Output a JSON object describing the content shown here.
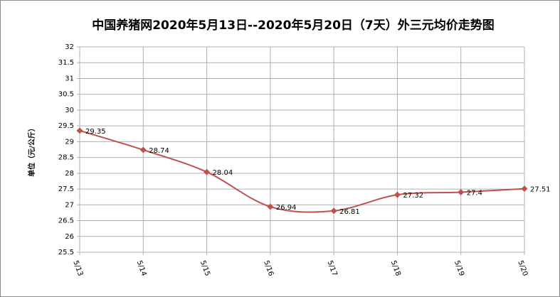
{
  "chart_data": {
    "type": "line",
    "title": "中国养猪网2020年5月13日--2020年5月20日（7天）外三元均价走势图",
    "y_label": "单位（元/公斤）",
    "categories": [
      "5/13",
      "5/14",
      "5/15",
      "5/16",
      "5/17",
      "5/18",
      "5/19",
      "5/20"
    ],
    "values": [
      29.35,
      28.74,
      28.04,
      26.94,
      26.81,
      27.32,
      27.4,
      27.51
    ],
    "color": "#c0504d",
    "smooth": true,
    "grid": true,
    "ylim": [
      25.5,
      32
    ],
    "yticks": [
      25.5,
      26,
      26.5,
      27,
      27.5,
      28,
      28.5,
      29,
      29.5,
      30,
      30.5,
      31,
      31.5,
      32
    ]
  }
}
